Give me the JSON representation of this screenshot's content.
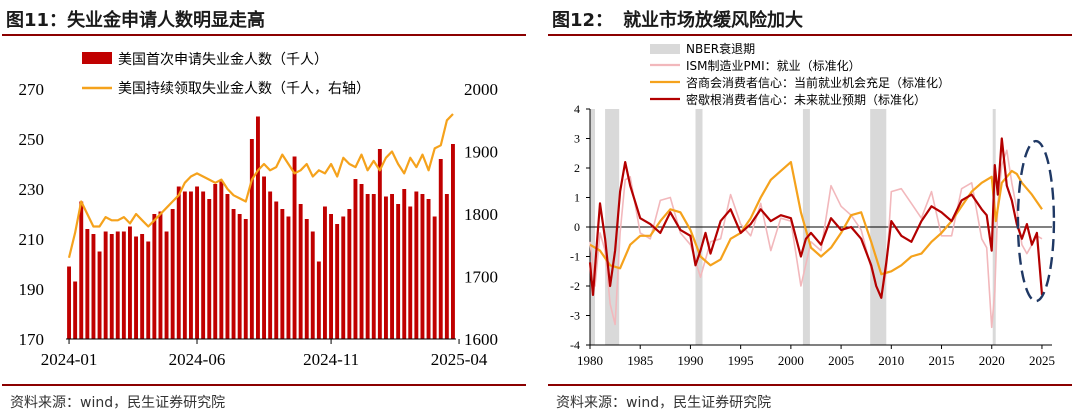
{
  "panels": [
    {
      "title_prefix": "图11：",
      "title": "失业金申请人数明显走高",
      "source": "资料来源：wind，民生证券研究院"
    },
    {
      "title_prefix": "图12：",
      "title": "就业市场放缓风险加大",
      "source": "资料来源：wind，民生证券研究院"
    }
  ],
  "colors": {
    "bar_red": "#c00000",
    "orange": "#f5a21c",
    "darkred": "#b30000",
    "pink": "#f2b8bc",
    "shade": "#d9d9d9",
    "rule": "#8b0000"
  },
  "chart_data": [
    {
      "type": "bar+line",
      "legend": [
        "美国首次申请失业金人数（千人）",
        "美国持续领取失业金人数（千人，右轴）"
      ],
      "legend_position": "top-left",
      "grid": false,
      "x_ticks": [
        "2024-01",
        "2024-06",
        "2024-11",
        "2025-04"
      ],
      "x_tick_index": [
        0,
        21,
        43,
        64
      ],
      "y_left": {
        "ticks": [
          170,
          190,
          210,
          230,
          250,
          270
        ],
        "lim": [
          170,
          270
        ]
      },
      "y_right": {
        "ticks": [
          1600,
          1700,
          1800,
          1900,
          2000
        ],
        "lim": [
          1600,
          2000
        ]
      },
      "initial_claims": [
        199,
        193,
        225,
        214,
        212,
        205,
        213,
        212,
        213,
        213,
        215,
        211,
        212,
        209,
        220,
        221,
        213,
        222,
        231,
        229,
        229,
        231,
        229,
        226,
        232,
        233,
        228,
        222,
        220,
        218,
        250,
        259,
        235,
        229,
        225,
        222,
        219,
        243,
        224,
        218,
        213,
        201,
        223,
        220,
        216,
        219,
        222,
        234,
        232,
        228,
        228,
        246,
        227,
        228,
        224,
        230,
        223,
        229,
        228,
        226,
        219,
        242,
        228,
        248
      ],
      "continuing_claims": [
        1730,
        1770,
        1820,
        1800,
        1780,
        1780,
        1795,
        1790,
        1790,
        1795,
        1785,
        1800,
        1790,
        1780,
        1790,
        1800,
        1810,
        1820,
        1830,
        1850,
        1860,
        1865,
        1860,
        1855,
        1850,
        1855,
        1840,
        1830,
        1825,
        1820,
        1855,
        1870,
        1880,
        1870,
        1875,
        1895,
        1880,
        1865,
        1870,
        1880,
        1860,
        1870,
        1865,
        1880,
        1860,
        1890,
        1880,
        1875,
        1895,
        1870,
        1885,
        1870,
        1890,
        1900,
        1880,
        1865,
        1890,
        1875,
        1895,
        1870,
        1905,
        1910,
        1950,
        1960
      ]
    },
    {
      "type": "line",
      "legend": [
        "NBER衰退期",
        "ISM制造业PMI：就业（标准化）",
        "咨商会消费者信心：当前就业机会充足（标准化）",
        "密歇根消费者信心：未来就业预期（标准化）"
      ],
      "legend_position": "top-left",
      "grid": false,
      "x_ticks": [
        "1980",
        "1985",
        "1990",
        "1995",
        "2000",
        "2005",
        "2010",
        "2015",
        "2020",
        "2025"
      ],
      "x_lim": [
        1980,
        2026
      ],
      "y_ticks": [
        "4",
        "3",
        "2",
        "1",
        "0",
        "-1",
        "-2",
        "-3",
        "-4"
      ],
      "y_lim": [
        -4,
        4
      ],
      "recessions": [
        [
          1980.0,
          1980.5
        ],
        [
          1981.5,
          1982.9
        ],
        [
          1990.5,
          1991.2
        ],
        [
          2001.2,
          2001.9
        ],
        [
          2007.9,
          2009.5
        ],
        [
          2020.1,
          2020.4
        ]
      ],
      "series": [
        {
          "name": "ISM制造业PMI：就业（标准化）",
          "x": [
            1980,
            1980.5,
            1981,
            1981.5,
            1982,
            1982.5,
            1983,
            1983.5,
            1984,
            1985,
            1986,
            1987,
            1988,
            1989,
            1990,
            1991,
            1992,
            1993,
            1994,
            1995,
            1996,
            1997,
            1998,
            1999,
            2000,
            2001,
            2002,
            2003,
            2004,
            2005,
            2006,
            2007,
            2008,
            2008.5,
            2009,
            2009.5,
            2010,
            2011,
            2012,
            2013,
            2014,
            2015,
            2016,
            2017,
            2018,
            2019,
            2019.5,
            2020,
            2020.3,
            2020.6,
            2021,
            2021.5,
            2022,
            2022.5,
            2023,
            2023.5,
            2024,
            2024.5,
            2025
          ],
          "y": [
            -0.5,
            -2.0,
            -0.2,
            -0.8,
            -2.6,
            -3.3,
            -0.2,
            1.6,
            1.7,
            -0.2,
            -0.4,
            0.9,
            1.0,
            -0.2,
            -0.6,
            -1.7,
            -0.5,
            -0.4,
            1.1,
            0.1,
            -0.3,
            0.8,
            -0.8,
            0.3,
            0.2,
            -2.0,
            -0.5,
            -0.8,
            1.4,
            0.7,
            0.4,
            -0.1,
            -1.4,
            -2.0,
            -2.4,
            -1.5,
            1.2,
            1.3,
            0.8,
            0.3,
            1.2,
            -0.3,
            -0.3,
            1.3,
            1.5,
            -0.4,
            -0.7,
            -3.4,
            -2.2,
            0.8,
            2.1,
            2.6,
            1.5,
            0.6,
            -0.6,
            -0.9,
            -0.6,
            -0.3,
            -0.4
          ]
        },
        {
          "name": "咨商会消费者信心：当前就业机会充足（标准化）",
          "x": [
            1980,
            1981,
            1982,
            1983,
            1984,
            1985,
            1986,
            1987,
            1988,
            1989,
            1990,
            1991,
            1992,
            1993,
            1994,
            1995,
            1996,
            1997,
            1998,
            1999,
            2000,
            2001,
            2002,
            2003,
            2004,
            2005,
            2006,
            2007,
            2008,
            2009,
            2010,
            2011,
            2012,
            2013,
            2014,
            2015,
            2016,
            2017,
            2018,
            2019,
            2020,
            2020.4,
            2021,
            2022,
            2022.5,
            2023,
            2024,
            2025
          ],
          "y": [
            -0.6,
            -0.8,
            -1.3,
            -1.4,
            -0.6,
            -0.3,
            -0.3,
            0.2,
            0.6,
            0.5,
            -0.1,
            -1.0,
            -1.3,
            -1.1,
            -0.4,
            -0.2,
            0.3,
            1.0,
            1.6,
            1.9,
            2.2,
            0.5,
            -0.7,
            -1.0,
            -0.7,
            -0.2,
            0.4,
            0.5,
            -0.5,
            -1.6,
            -1.5,
            -1.3,
            -1.0,
            -0.9,
            -0.5,
            -0.2,
            0.2,
            0.7,
            1.2,
            1.5,
            1.7,
            0.2,
            1.5,
            1.9,
            1.8,
            1.5,
            1.1,
            0.6
          ]
        },
        {
          "name": "密歇根消费者信心：未来就业预期（标准化）",
          "x": [
            1980,
            1980.3,
            1980.7,
            1981,
            1981.5,
            1982,
            1982.5,
            1983,
            1983.5,
            1984,
            1985,
            1986,
            1987,
            1988,
            1989,
            1990,
            1990.5,
            1991,
            1991.5,
            1992,
            1993,
            1994,
            1995,
            1996,
            1997,
            1998,
            1999,
            2000,
            2001,
            2001.5,
            2002,
            2003,
            2004,
            2005,
            2006,
            2007,
            2008,
            2008.5,
            2009,
            2009.5,
            2010,
            2011,
            2012,
            2013,
            2014,
            2015,
            2016,
            2017,
            2018,
            2019,
            2019.5,
            2020,
            2020.3,
            2020.6,
            2021,
            2021.5,
            2022,
            2022.5,
            2023,
            2023.5,
            2024,
            2024.5,
            2025
          ],
          "y": [
            -1.2,
            -2.3,
            -0.5,
            0.8,
            -0.4,
            -2.0,
            -0.8,
            1.2,
            2.2,
            1.4,
            0.3,
            0.1,
            -0.2,
            0.5,
            -0.1,
            -0.3,
            -1.3,
            -0.8,
            -0.2,
            -0.9,
            0.2,
            0.6,
            -0.2,
            0.1,
            0.6,
            0.2,
            0.4,
            0.3,
            -1.0,
            -0.4,
            -0.2,
            -0.6,
            0.3,
            -0.1,
            0.0,
            -0.4,
            -1.3,
            -2.0,
            -2.4,
            -1.2,
            0.2,
            -0.3,
            -0.5,
            0.2,
            0.7,
            0.5,
            0.2,
            0.9,
            1.1,
            0.6,
            0.4,
            -0.8,
            2.1,
            1.1,
            3.0,
            1.4,
            0.9,
            0.1,
            -0.4,
            0.1,
            -0.6,
            -0.2,
            -2.3
          ]
        }
      ]
    }
  ]
}
